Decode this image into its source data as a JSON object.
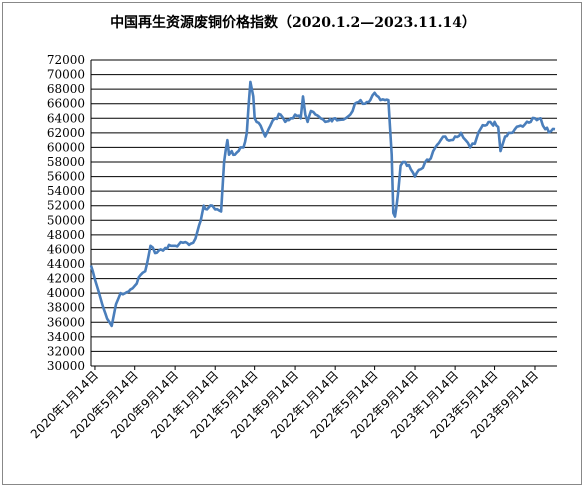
{
  "chart_data": {
    "type": "line",
    "title": "中国再生资源废铜价格指数（2020.1.2—2023.11.14）",
    "xlabel": "",
    "ylabel": "",
    "ylim": [
      30000,
      72000
    ],
    "y_ticks": [
      30000,
      32000,
      34000,
      36000,
      38000,
      40000,
      42000,
      44000,
      46000,
      48000,
      50000,
      52000,
      54000,
      56000,
      58000,
      60000,
      62000,
      64000,
      66000,
      68000,
      70000,
      72000
    ],
    "x_tick_labels": [
      "2020年1月14日",
      "2020年5月14日",
      "2020年9月14日",
      "2021年1月14日",
      "2021年5月14日",
      "2021年9月14日",
      "2022年1月14日",
      "2022年5月14日",
      "2022年9月14日",
      "2023年1月14日",
      "2023年5月14日",
      "2023年9月14日"
    ],
    "x_tick_dates": [
      "2020-01-14",
      "2020-05-14",
      "2020-09-14",
      "2021-01-14",
      "2021-05-14",
      "2021-09-14",
      "2022-01-14",
      "2022-05-14",
      "2022-09-14",
      "2023-01-14",
      "2023-05-14",
      "2023-09-14"
    ],
    "grid": true,
    "legend": "none",
    "colors": {
      "line": "#4a7ebb",
      "grid": "#000000",
      "axis": "#000000"
    },
    "series": [
      {
        "x": [
          "2020-01-02",
          "2020-01-20",
          "2020-02-05",
          "2020-02-20",
          "2020-03-05",
          "2020-03-18",
          "2020-03-23",
          "2020-04-01",
          "2020-04-15",
          "2020-05-01",
          "2020-05-14",
          "2020-06-01",
          "2020-06-15",
          "2020-07-01",
          "2020-07-15",
          "2020-08-01",
          "2020-08-15",
          "2020-09-01",
          "2020-09-15",
          "2020-10-01",
          "2020-10-15",
          "2020-11-01",
          "2020-11-15",
          "2020-12-01",
          "2020-12-10",
          "2020-12-20",
          "2021-01-05",
          "2021-01-14",
          "2021-02-01",
          "2021-02-10",
          "2021-02-20",
          "2021-02-25",
          "2021-03-05",
          "2021-03-15",
          "2021-04-01",
          "2021-04-10",
          "2021-04-20",
          "2021-05-01",
          "2021-05-10",
          "2021-05-14",
          "2021-05-20",
          "2021-06-01",
          "2021-06-15",
          "2021-07-01",
          "2021-07-15",
          "2021-08-01",
          "2021-08-15",
          "2021-09-01",
          "2021-09-14",
          "2021-10-01",
          "2021-10-08",
          "2021-10-15",
          "2021-10-22",
          "2021-11-01",
          "2021-11-15",
          "2021-12-01",
          "2021-12-15",
          "2022-01-14",
          "2022-02-01",
          "2022-02-15",
          "2022-03-01",
          "2022-03-08",
          "2022-03-15",
          "2022-04-01",
          "2022-04-15",
          "2022-05-01",
          "2022-05-14",
          "2022-06-01",
          "2022-06-15",
          "2022-06-25",
          "2022-07-05",
          "2022-07-10",
          "2022-07-15",
          "2022-07-25",
          "2022-08-01",
          "2022-08-15",
          "2022-09-01",
          "2022-09-14",
          "2022-10-01",
          "2022-10-15",
          "2022-11-01",
          "2022-11-15",
          "2022-12-01",
          "2022-12-15",
          "2023-01-01",
          "2023-01-14",
          "2023-02-01",
          "2023-02-15",
          "2023-03-01",
          "2023-03-15",
          "2023-04-01",
          "2023-04-15",
          "2023-05-01",
          "2023-05-10",
          "2023-05-14",
          "2023-05-25",
          "2023-06-01",
          "2023-06-15",
          "2023-07-01",
          "2023-07-15",
          "2023-08-01",
          "2023-08-15",
          "2023-09-01",
          "2023-09-14",
          "2023-10-01",
          "2023-10-15",
          "2023-11-01",
          "2023-11-14"
        ],
        "values": [
          43800,
          41000,
          38500,
          36500,
          35500,
          38500,
          39000,
          40000,
          40000,
          40500,
          41000,
          42500,
          43000,
          46500,
          45500,
          46000,
          46200,
          46500,
          46500,
          47000,
          47000,
          46800,
          47500,
          50000,
          52000,
          51500,
          52000,
          51500,
          51200,
          58000,
          61000,
          59000,
          59500,
          59000,
          60000,
          60000,
          62000,
          69000,
          67000,
          64000,
          63500,
          63000,
          61500,
          63000,
          64000,
          64500,
          63500,
          64000,
          64500,
          64000,
          67000,
          64500,
          63500,
          65000,
          64500,
          64000,
          63500,
          64000,
          63800,
          64000,
          64500,
          65000,
          66000,
          66500,
          66000,
          66500,
          67500,
          66500,
          66500,
          66500,
          59000,
          51000,
          50500,
          54000,
          57500,
          58000,
          57000,
          56000,
          57000,
          58000,
          58500,
          60000,
          61000,
          61500,
          61000,
          61500,
          62000,
          61000,
          60000,
          60500,
          62500,
          63000,
          63500,
          63000,
          63500,
          62800,
          59500,
          61500,
          62000,
          62500,
          63000,
          63200,
          63500,
          64000,
          64000,
          62500,
          62200,
          62500
        ]
      }
    ]
  }
}
